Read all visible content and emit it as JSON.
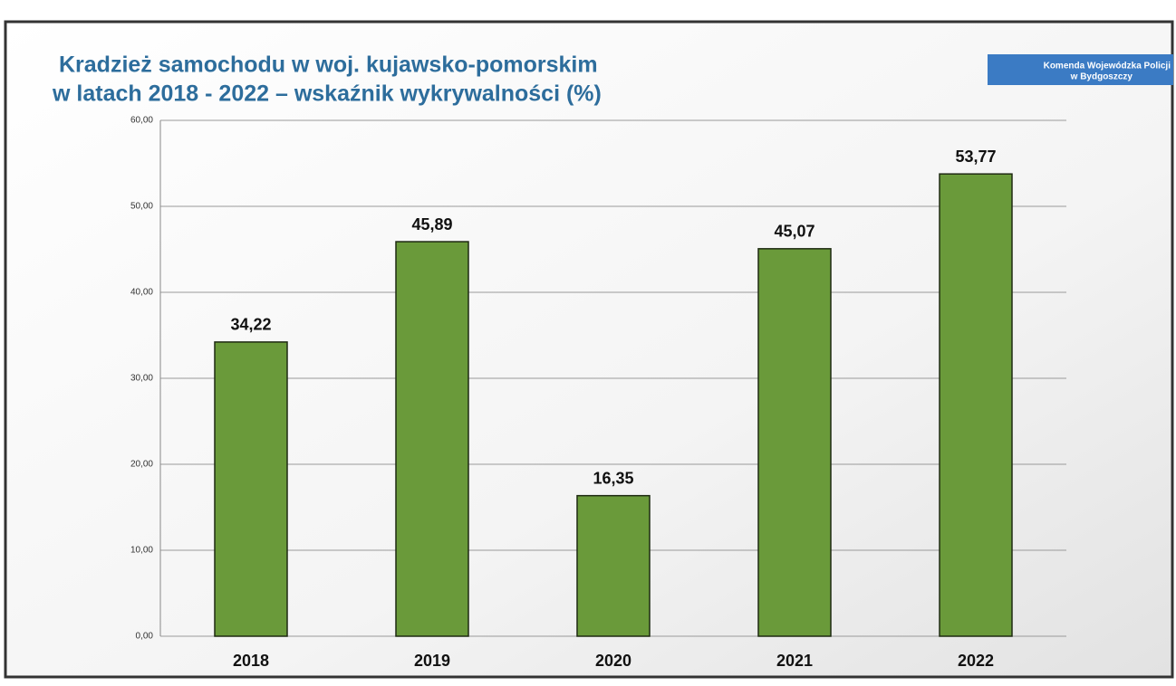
{
  "logo": {
    "lines": [
      "Komenda Wojewódzka Policji",
      "w Bydgoszczy"
    ]
  },
  "chart_data": {
    "type": "bar",
    "title": [
      "Kradzież samochodu w woj. kujawsko-pomorskim",
      "w latach 2018 - 2022 – wskaźnik wykrywalności (%)"
    ],
    "categories": [
      "2018",
      "2019",
      "2020",
      "2021",
      "2022"
    ],
    "values": [
      34.22,
      45.89,
      16.35,
      45.07,
      53.77
    ],
    "value_labels": [
      "34,22",
      "45,89",
      "16,35",
      "45,07",
      "53,77"
    ],
    "color": "#6a9a3a",
    "ylim": [
      0,
      60
    ],
    "yticks": [
      {
        "value": 0,
        "label": "0,00"
      },
      {
        "value": 10,
        "label": "10,00"
      },
      {
        "value": 20,
        "label": "20,00"
      },
      {
        "value": 30,
        "label": "30,00"
      },
      {
        "value": 40,
        "label": "40,00"
      },
      {
        "value": 50,
        "label": "50,00"
      },
      {
        "value": 60,
        "label": "60,00"
      }
    ],
    "grid": true
  }
}
